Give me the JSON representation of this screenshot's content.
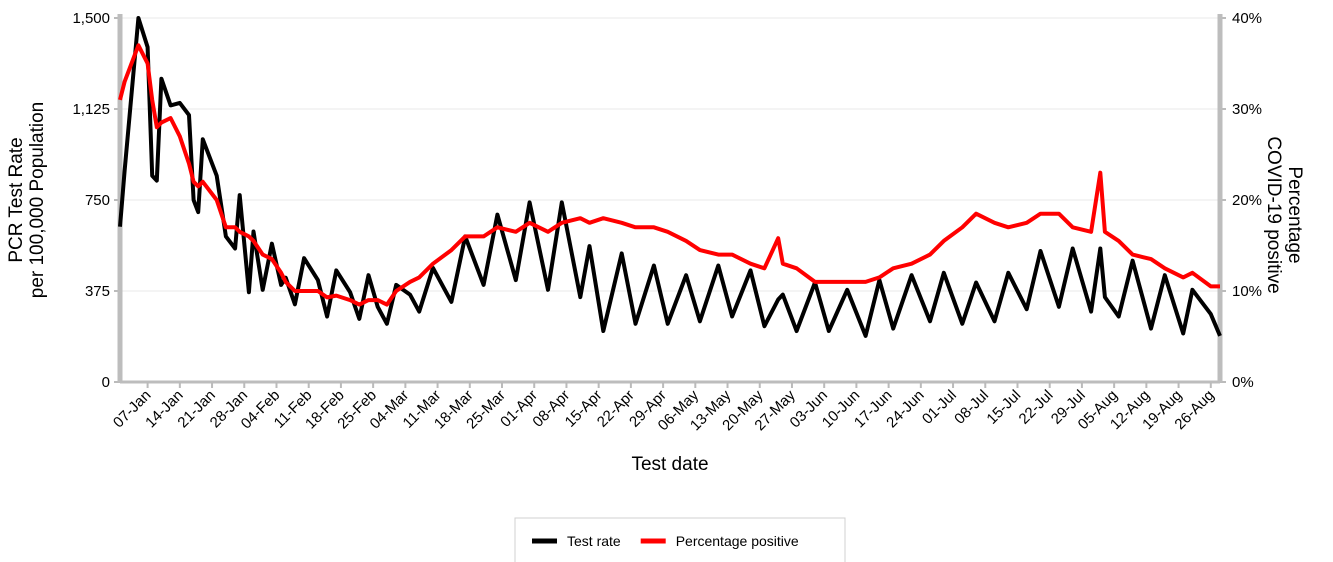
{
  "chart_data": {
    "type": "line",
    "xlabel": "Test date",
    "ylabel": [
      "PCR Test Rate",
      "per 100,000 Population"
    ],
    "y2label": [
      "Percentage",
      "COVID-19 positive"
    ],
    "x": [
      "01-Jan",
      "02-Jan",
      "05-Jan",
      "07-Jan",
      "08-Jan",
      "09-Jan",
      "10-Jan",
      "12-Jan",
      "14-Jan",
      "16-Jan",
      "17-Jan",
      "18-Jan",
      "19-Jan",
      "22-Jan",
      "24-Jan",
      "26-Jan",
      "27-Jan",
      "29-Jan",
      "30-Jan",
      "01-Feb",
      "03-Feb",
      "05-Feb",
      "06-Feb",
      "08-Feb",
      "10-Feb",
      "13-Feb",
      "15-Feb",
      "17-Feb",
      "20-Feb",
      "22-Feb",
      "24-Feb",
      "26-Feb",
      "28-Feb",
      "02-Mar",
      "05-Mar",
      "07-Mar",
      "10-Mar",
      "14-Mar",
      "17-Mar",
      "21-Mar",
      "24-Mar",
      "28-Mar",
      "31-Mar",
      "04-Apr",
      "07-Apr",
      "11-Apr",
      "13-Apr",
      "16-Apr",
      "20-Apr",
      "23-Apr",
      "27-Apr",
      "30-Apr",
      "04-May",
      "07-May",
      "11-May",
      "14-May",
      "18-May",
      "21-May",
      "24-May",
      "25-May",
      "28-May",
      "01-Jun",
      "04-Jun",
      "08-Jun",
      "12-Jun",
      "15-Jun",
      "18-Jun",
      "22-Jun",
      "26-Jun",
      "29-Jun",
      "03-Jul",
      "06-Jul",
      "10-Jul",
      "13-Jul",
      "17-Jul",
      "20-Jul",
      "24-Jul",
      "27-Jul",
      "31-Jul",
      "02-Aug",
      "03-Aug",
      "06-Aug",
      "09-Aug",
      "13-Aug",
      "16-Aug",
      "20-Aug",
      "22-Aug",
      "26-Aug",
      "28-Aug"
    ],
    "series": [
      {
        "name": "Test rate",
        "color": "#000000",
        "values": [
          640,
          870,
          1500,
          1380,
          850,
          830,
          1250,
          1140,
          1150,
          1100,
          750,
          700,
          1000,
          850,
          600,
          550,
          770,
          370,
          620,
          380,
          570,
          400,
          430,
          320,
          510,
          420,
          270,
          460,
          370,
          260,
          440,
          310,
          240,
          400,
          360,
          290,
          470,
          330,
          600,
          400,
          690,
          420,
          740,
          380,
          740,
          350,
          560,
          210,
          530,
          240,
          480,
          240,
          440,
          250,
          480,
          270,
          460,
          230,
          340,
          360,
          210,
          410,
          210,
          380,
          190,
          420,
          220,
          440,
          250,
          450,
          240,
          410,
          250,
          450,
          300,
          540,
          310,
          550,
          290,
          550,
          350,
          270,
          500,
          220,
          440,
          200,
          380,
          280,
          190
        ]
      },
      {
        "name": "Percentage positive",
        "color": "#ff0000",
        "axis": "y2",
        "values": [
          31,
          33,
          37,
          35,
          31,
          28,
          28.5,
          29,
          27,
          24,
          22,
          21.5,
          22,
          20,
          17,
          17,
          16.5,
          16,
          15.5,
          14,
          13.5,
          12,
          11,
          10,
          10,
          10,
          9.3,
          9.5,
          9,
          8.5,
          9,
          9,
          8.5,
          10,
          11,
          11.5,
          13,
          14.5,
          16,
          16,
          17,
          16.5,
          17.5,
          16.5,
          17.5,
          18,
          17.5,
          18,
          17.5,
          17,
          17,
          16.5,
          15.5,
          14.5,
          14,
          14,
          13,
          12.5,
          15.8,
          13,
          12.5,
          11,
          11,
          11,
          11,
          11.5,
          12.5,
          13,
          14,
          15.5,
          17,
          18.5,
          17.5,
          17,
          17.5,
          18.5,
          18.5,
          17,
          16.5,
          23,
          16.5,
          15.5,
          14,
          13.5,
          12.5,
          11.5,
          12,
          10.5,
          10.5
        ]
      }
    ],
    "xlim": [
      "01-Jan",
      "28-Aug"
    ],
    "xticks": [
      "07-Jan",
      "14-Jan",
      "21-Jan",
      "28-Jan",
      "04-Feb",
      "11-Feb",
      "18-Feb",
      "25-Feb",
      "04-Mar",
      "11-Mar",
      "18-Mar",
      "25-Mar",
      "01-Apr",
      "08-Apr",
      "15-Apr",
      "22-Apr",
      "29-Apr",
      "06-May",
      "13-May",
      "20-May",
      "27-May",
      "03-Jun",
      "10-Jun",
      "17-Jun",
      "24-Jun",
      "01-Jul",
      "08-Jul",
      "15-Jul",
      "22-Jul",
      "29-Jul",
      "05-Aug",
      "12-Aug",
      "19-Aug",
      "26-Aug"
    ],
    "ylim": [
      0,
      1500
    ],
    "yticks": [
      0,
      375,
      750,
      {
        "value": 1125,
        "label": "1,125"
      },
      {
        "value": 1500,
        "label": "1,500"
      }
    ],
    "y2lim": [
      0,
      40
    ],
    "y2ticks": [
      {
        "value": 0,
        "label": "0%"
      },
      {
        "value": 10,
        "label": "10%"
      },
      {
        "value": 20,
        "label": "20%"
      },
      {
        "value": 30,
        "label": "30%"
      },
      {
        "value": 40,
        "label": "40%"
      }
    ],
    "grid": true,
    "legend": "bottom"
  }
}
